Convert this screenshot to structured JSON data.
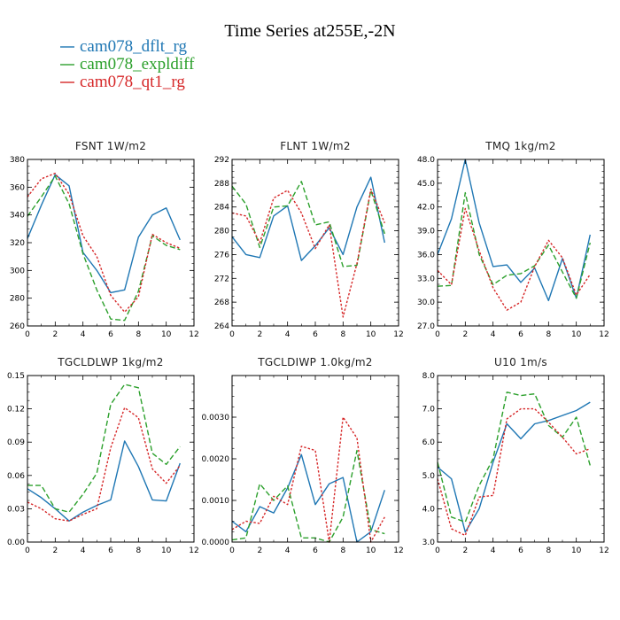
{
  "figure_title": "Time Series at255E,-2N",
  "legend": [
    {
      "name": "cam078_dflt_rg",
      "color": "#1f77b4",
      "dash": "solid"
    },
    {
      "name": "cam078_expldiff",
      "color": "#2ca02c",
      "dash": "dashed"
    },
    {
      "name": "cam078_qt1_rg",
      "color": "#d62728",
      "dash": "dotted"
    }
  ],
  "chart_data": [
    {
      "type": "line",
      "title": "FSNT   1W/m2",
      "x": [
        0,
        1,
        2,
        3,
        4,
        5,
        6,
        7,
        8,
        9,
        10,
        11
      ],
      "xlim": [
        0,
        12
      ],
      "xticks": [
        0,
        2,
        4,
        6,
        8,
        10,
        12
      ],
      "ylim": [
        260,
        380
      ],
      "yticks": [
        260,
        280,
        300,
        320,
        340,
        360,
        380
      ],
      "ytick_labels": [
        "260",
        "280",
        "300",
        "320",
        "340",
        "360",
        "380"
      ],
      "series": [
        {
          "name": "cam078_dflt_rg",
          "values": [
            323,
            347,
            369,
            361,
            313,
            300,
            284,
            286,
            324,
            340,
            345,
            322
          ]
        },
        {
          "name": "cam078_expldiff",
          "values": [
            339,
            353,
            368,
            348,
            312,
            286,
            265,
            264,
            285,
            325,
            318,
            315
          ]
        },
        {
          "name": "cam078_qt1_rg",
          "values": [
            353,
            366,
            370,
            355,
            325,
            310,
            282,
            270,
            281,
            326,
            320,
            316
          ]
        }
      ]
    },
    {
      "type": "line",
      "title": "FLNT   1W/m2",
      "x": [
        0,
        1,
        2,
        3,
        4,
        5,
        6,
        7,
        8,
        9,
        10,
        11
      ],
      "xlim": [
        0,
        12
      ],
      "xticks": [
        0,
        2,
        4,
        6,
        8,
        10,
        12
      ],
      "ylim": [
        264,
        292
      ],
      "yticks": [
        264,
        268,
        272,
        276,
        280,
        284,
        288,
        292
      ],
      "ytick_labels": [
        "264",
        "268",
        "272",
        "276",
        "280",
        "284",
        "288",
        "292"
      ],
      "series": [
        {
          "name": "cam078_dflt_rg",
          "values": [
            279,
            276,
            275.5,
            282.5,
            284.2,
            275,
            277.5,
            280.5,
            276,
            284,
            289,
            278
          ]
        },
        {
          "name": "cam078_expldiff",
          "values": [
            287.5,
            284.5,
            277.2,
            284,
            284.2,
            288.3,
            281,
            281.5,
            274,
            274.2,
            286.8,
            279.5
          ]
        },
        {
          "name": "cam078_qt1_rg",
          "values": [
            283,
            282.5,
            278,
            285.5,
            286.8,
            283,
            277,
            281,
            265.5,
            274.5,
            287,
            281.3
          ]
        }
      ]
    },
    {
      "type": "line",
      "title": "TMQ   1kg/m2",
      "x": [
        0,
        1,
        2,
        3,
        4,
        5,
        6,
        7,
        8,
        9,
        10,
        11
      ],
      "xlim": [
        0,
        12
      ],
      "xticks": [
        0,
        2,
        4,
        6,
        8,
        10,
        12
      ],
      "ylim": [
        27,
        48
      ],
      "yticks": [
        27,
        30,
        33,
        36,
        39,
        42,
        45,
        48
      ],
      "ytick_labels": [
        "27.0",
        "30.0",
        "33.0",
        "36.0",
        "39.0",
        "42.0",
        "45.0",
        "48.0"
      ],
      "series": [
        {
          "name": "cam078_dflt_rg",
          "values": [
            36,
            40.5,
            48,
            40,
            34.5,
            34.7,
            32.5,
            34.3,
            30.2,
            35.5,
            30.5,
            38.5
          ]
        },
        {
          "name": "cam078_expldiff",
          "values": [
            32,
            32.1,
            43.8,
            36,
            32.2,
            33.4,
            33.6,
            34.6,
            37.2,
            33.8,
            30.5,
            37.5
          ]
        },
        {
          "name": "cam078_qt1_rg",
          "values": [
            34,
            32.2,
            41.8,
            36.5,
            31.8,
            29,
            30,
            34.5,
            37.8,
            35.6,
            30.9,
            33.5
          ]
        }
      ]
    },
    {
      "type": "line",
      "title": "TGCLDLWP   1kg/m2",
      "x": [
        0,
        1,
        2,
        3,
        4,
        5,
        6,
        7,
        8,
        9,
        10,
        11
      ],
      "xlim": [
        0,
        12
      ],
      "xticks": [
        0,
        2,
        4,
        6,
        8,
        10,
        12
      ],
      "ylim": [
        0,
        0.15
      ],
      "yticks": [
        0,
        0.03,
        0.06,
        0.09,
        0.12,
        0.15
      ],
      "ytick_labels": [
        "0.00",
        "0.03",
        "0.06",
        "0.09",
        "0.12",
        "0.15"
      ],
      "series": [
        {
          "name": "cam078_dflt_rg",
          "values": [
            0.048,
            0.04,
            0.03,
            0.019,
            0.027,
            0.033,
            0.038,
            0.091,
            0.068,
            0.038,
            0.037,
            0.071
          ]
        },
        {
          "name": "cam078_expldiff",
          "values": [
            0.051,
            0.051,
            0.03,
            0.027,
            0.043,
            0.062,
            0.124,
            0.142,
            0.139,
            0.08,
            0.07,
            0.086
          ]
        },
        {
          "name": "cam078_qt1_rg",
          "values": [
            0.036,
            0.03,
            0.021,
            0.019,
            0.025,
            0.03,
            0.085,
            0.121,
            0.112,
            0.066,
            0.053,
            0.069
          ]
        }
      ]
    },
    {
      "type": "line",
      "title": "TGCLDIWP   1.0kg/m2",
      "x": [
        0,
        1,
        2,
        3,
        4,
        5,
        6,
        7,
        8,
        9,
        10,
        11
      ],
      "xlim": [
        0,
        12
      ],
      "xticks": [
        0,
        2,
        4,
        6,
        8,
        10,
        12
      ],
      "ylim": [
        0,
        0.004
      ],
      "yticks": [
        0,
        0.001,
        0.002,
        0.003
      ],
      "ytick_labels": [
        "0.0000",
        "0.0010",
        "0.0020",
        "0.0030"
      ],
      "series": [
        {
          "name": "cam078_dflt_rg",
          "values": [
            0.0005,
            0.00025,
            0.00085,
            0.0007,
            0.0013,
            0.0021,
            0.0009,
            0.0014,
            0.00155,
            0.0,
            0.00025,
            0.00125
          ]
        },
        {
          "name": "cam078_expldiff",
          "values": [
            5e-05,
            0.0001,
            0.0014,
            0.001,
            0.00135,
            0.0001,
            0.0001,
            0.0,
            0.0006,
            0.0022,
            0.0003,
            0.0002
          ]
        },
        {
          "name": "cam078_qt1_rg",
          "values": [
            0.0003,
            0.0005,
            0.00045,
            0.0011,
            0.0009,
            0.0023,
            0.0022,
            0.0,
            0.003,
            0.0025,
            0.0,
            0.0006
          ]
        }
      ]
    },
    {
      "type": "line",
      "title": "U10   1m/s",
      "x": [
        0,
        1,
        2,
        3,
        4,
        5,
        6,
        7,
        8,
        9,
        10,
        11
      ],
      "xlim": [
        0,
        12
      ],
      "xticks": [
        0,
        2,
        4,
        6,
        8,
        10,
        12
      ],
      "ylim": [
        3,
        8
      ],
      "yticks": [
        3,
        4,
        5,
        6,
        7,
        8
      ],
      "ytick_labels": [
        "3.0",
        "4.0",
        "5.0",
        "6.0",
        "7.0",
        "8.0"
      ],
      "series": [
        {
          "name": "cam078_dflt_rg",
          "values": [
            5.25,
            4.9,
            3.3,
            4.0,
            5.4,
            6.55,
            6.1,
            6.55,
            6.65,
            6.8,
            6.95,
            7.2
          ]
        },
        {
          "name": "cam078_expldiff",
          "values": [
            5.4,
            3.75,
            3.6,
            4.7,
            5.5,
            7.5,
            7.4,
            7.45,
            6.5,
            6.15,
            6.75,
            5.3
          ]
        },
        {
          "name": "cam078_qt1_rg",
          "values": [
            4.9,
            3.4,
            3.2,
            4.35,
            4.4,
            6.7,
            7.0,
            7.0,
            6.6,
            6.15,
            5.65,
            5.8
          ]
        }
      ]
    }
  ]
}
